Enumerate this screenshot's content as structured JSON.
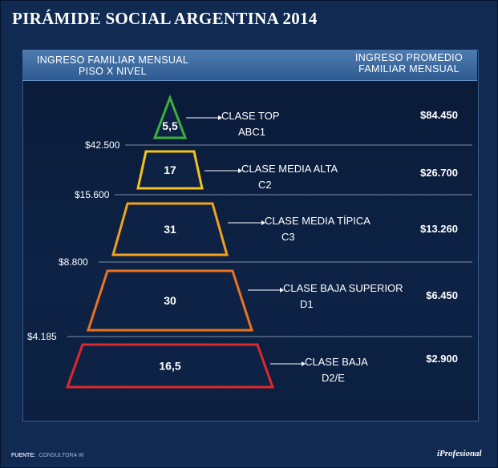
{
  "title": "PIRÁMIDE SOCIAL ARGENTINA 2014",
  "header": {
    "left_line1": "INGRESO FAMILIAR MENSUAL",
    "left_line2": "PISO X NIVEL",
    "right_line1": "INGRESO PROMEDIO",
    "right_line2": "FAMILIAR MENSUAL"
  },
  "footer": {
    "label": "FUENTE:",
    "source": "CONSULTORA W"
  },
  "brand": "iProfesional",
  "chart_data": {
    "type": "pyramid",
    "title": "PIRÁMIDE SOCIAL ARGENTINA 2014",
    "thresholds": [
      "$42.500",
      "$15.600",
      "$8.800",
      "$4.185"
    ],
    "levels": [
      {
        "value": 5.5,
        "label": "5,5",
        "class_name": "CLASE TOP",
        "code": "ABC1",
        "avg_income": "$84.450",
        "color": "#3fae3a"
      },
      {
        "value": 17,
        "label": "17",
        "class_name": "CLASE MEDIA ALTA",
        "code": "C2",
        "avg_income": "$26.700",
        "color": "#f2c318"
      },
      {
        "value": 31,
        "label": "31",
        "class_name": "CLASE MEDIA TÍPICA",
        "code": "C3",
        "avg_income": "$13.260",
        "color": "#f2a21c"
      },
      {
        "value": 30,
        "label": "30",
        "class_name": "CLASE BAJA SUPERIOR",
        "code": "D1",
        "avg_income": "$6.450",
        "color": "#ea7420"
      },
      {
        "value": 16.5,
        "label": "16,5",
        "class_name": "CLASE BAJA",
        "code": "D2/E",
        "avg_income": "$2.900",
        "color": "#e0272c"
      }
    ]
  }
}
